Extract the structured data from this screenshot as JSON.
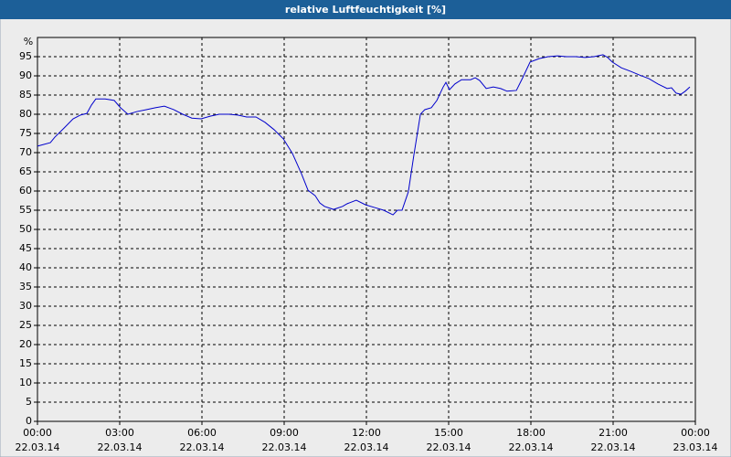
{
  "chart_data": {
    "type": "line",
    "title": "relative Luftfeuchtigkeit [%]",
    "y_label": "%",
    "color": "#0000cc",
    "grid": true,
    "x": [
      0,
      0.47,
      0.63,
      0.97,
      1.3,
      1.57,
      1.8,
      1.97,
      2.13,
      2.47,
      2.8,
      3.03,
      3.3,
      3.63,
      3.97,
      4.3,
      4.63,
      4.97,
      5.3,
      5.63,
      5.97,
      6.3,
      6.63,
      6.97,
      7.3,
      7.63,
      7.97,
      8.3,
      8.63,
      8.97,
      9.3,
      9.63,
      9.87,
      10.13,
      10.3,
      10.47,
      10.8,
      11.13,
      11.3,
      11.63,
      11.97,
      12.3,
      12.63,
      12.97,
      13.13,
      13.3,
      13.53,
      13.73,
      13.97,
      14.13,
      14.37,
      14.57,
      14.8,
      14.9,
      15.03,
      15.23,
      15.47,
      15.8,
      15.97,
      16.13,
      16.37,
      16.63,
      16.9,
      17.13,
      17.47,
      17.7,
      17.97,
      18.3,
      18.63,
      18.97,
      19.3,
      19.63,
      19.97,
      20.3,
      20.63,
      20.8,
      20.97,
      21.3,
      21.63,
      21.97,
      22.3,
      22.63,
      22.97,
      23.13,
      23.3,
      23.47,
      23.63,
      23.8
    ],
    "values": [
      71.7,
      72.6,
      74,
      76.4,
      78.8,
      79.8,
      80.2,
      82.4,
      84,
      84,
      83.6,
      81.7,
      80,
      80.7,
      81.2,
      81.7,
      82.1,
      81.2,
      80,
      79,
      78.8,
      79.5,
      80,
      80,
      79.8,
      79.3,
      79.3,
      77.9,
      76,
      73.6,
      69.8,
      64.5,
      60.2,
      58.8,
      56.9,
      56,
      55.2,
      56,
      56.7,
      57.6,
      56.4,
      55.7,
      55,
      53.8,
      55,
      55,
      59.8,
      69.3,
      80,
      81.2,
      81.7,
      83.6,
      87.1,
      88.3,
      86.4,
      87.9,
      89,
      89,
      89.5,
      88.8,
      86.7,
      87.1,
      86.7,
      86,
      86.2,
      89.5,
      93.6,
      94.5,
      95,
      95.2,
      95,
      95,
      94.8,
      95,
      95.5,
      94.8,
      93.6,
      92.1,
      91.2,
      90.2,
      89.3,
      87.9,
      86.7,
      86.9,
      85.5,
      85.2,
      86,
      87.1
    ],
    "xlim": [
      0,
      24
    ],
    "xticks": [
      {
        "value": 0,
        "label": "00:00"
      },
      {
        "value": 3,
        "label": "03:00"
      },
      {
        "value": 6,
        "label": "06:00"
      },
      {
        "value": 9,
        "label": "09:00"
      },
      {
        "value": 12,
        "label": "12:00"
      },
      {
        "value": 15,
        "label": "15:00"
      },
      {
        "value": 18,
        "label": "18:00"
      },
      {
        "value": 21,
        "label": "21:00"
      },
      {
        "value": 24,
        "label": "00:00"
      }
    ],
    "xtick_dates": [
      "22.03.14",
      "22.03.14",
      "22.03.14",
      "22.03.14",
      "22.03.14",
      "22.03.14",
      "22.03.14",
      "22.03.14",
      "23.03.14"
    ],
    "ylim": [
      0,
      100
    ],
    "yticks": [
      0,
      5,
      10,
      15,
      20,
      25,
      30,
      35,
      40,
      45,
      50,
      55,
      60,
      65,
      70,
      75,
      80,
      85,
      90,
      95
    ]
  }
}
